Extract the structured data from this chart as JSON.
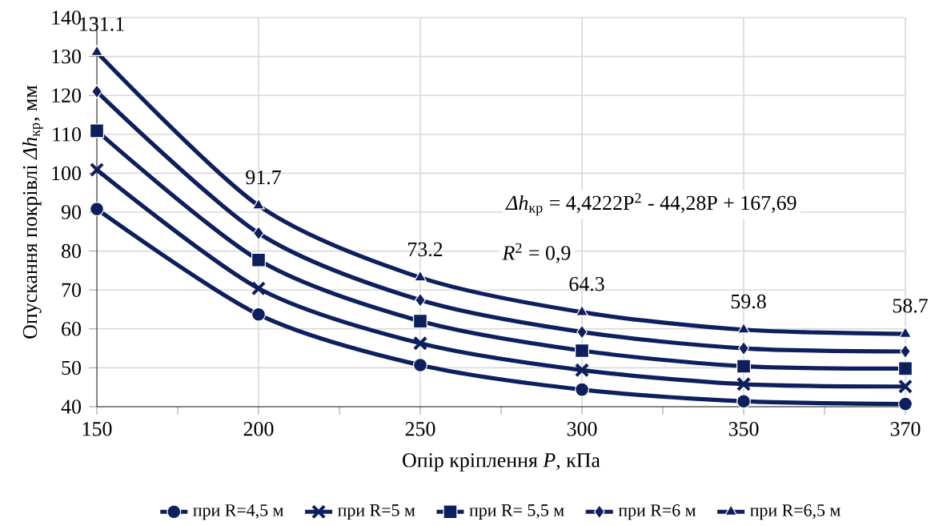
{
  "chart_data": {
    "type": "line",
    "xlabel": "Опір кріплення *P*, кПа",
    "ylabel": "Опускання покрівлі *Δh*$_{кр}$, мм",
    "categories": [
      "150",
      "200",
      "250",
      "300",
      "350",
      "370"
    ],
    "ylim": [
      40,
      140
    ],
    "yticks": [
      40,
      50,
      60,
      70,
      80,
      90,
      100,
      110,
      120,
      130,
      140
    ],
    "grid": true,
    "legend": "bottom",
    "series": [
      {
        "name": "при R=4,5 м",
        "color": "#0d1f5c",
        "marker": "circle",
        "values": [
          90.8,
          63.7,
          50.7,
          44.4,
          41.4,
          40.7
        ]
      },
      {
        "name": "при R=5 м",
        "color": "#0d1f5c",
        "marker": "cross",
        "values": [
          100.9,
          70.4,
          56.3,
          49.4,
          45.8,
          45.2
        ]
      },
      {
        "name": "при R= 5,5 м",
        "color": "#0d1f5c",
        "marker": "square",
        "values": [
          110.9,
          77.7,
          62.0,
          54.4,
          50.4,
          49.8
        ]
      },
      {
        "name": "при R=6 м",
        "color": "#0d1f5c",
        "marker": "diamond",
        "values": [
          121.0,
          84.6,
          67.4,
          59.2,
          55.0,
          54.2
        ]
      },
      {
        "name": "при R=6,5 м",
        "color": "#0d1f5c",
        "marker": "triangle",
        "values": [
          131.1,
          91.7,
          73.2,
          64.3,
          59.8,
          58.7
        ],
        "value_labels": [
          "131.1",
          "91.7",
          "73.2",
          "64.3",
          "59.8",
          "58.7"
        ]
      }
    ],
    "annotations": [
      "*Δh*$_{кр}$ = 4,4222P$^{2}$ - 44,28P + 167,69",
      "*R*$^{2}$ = 0,9"
    ]
  }
}
